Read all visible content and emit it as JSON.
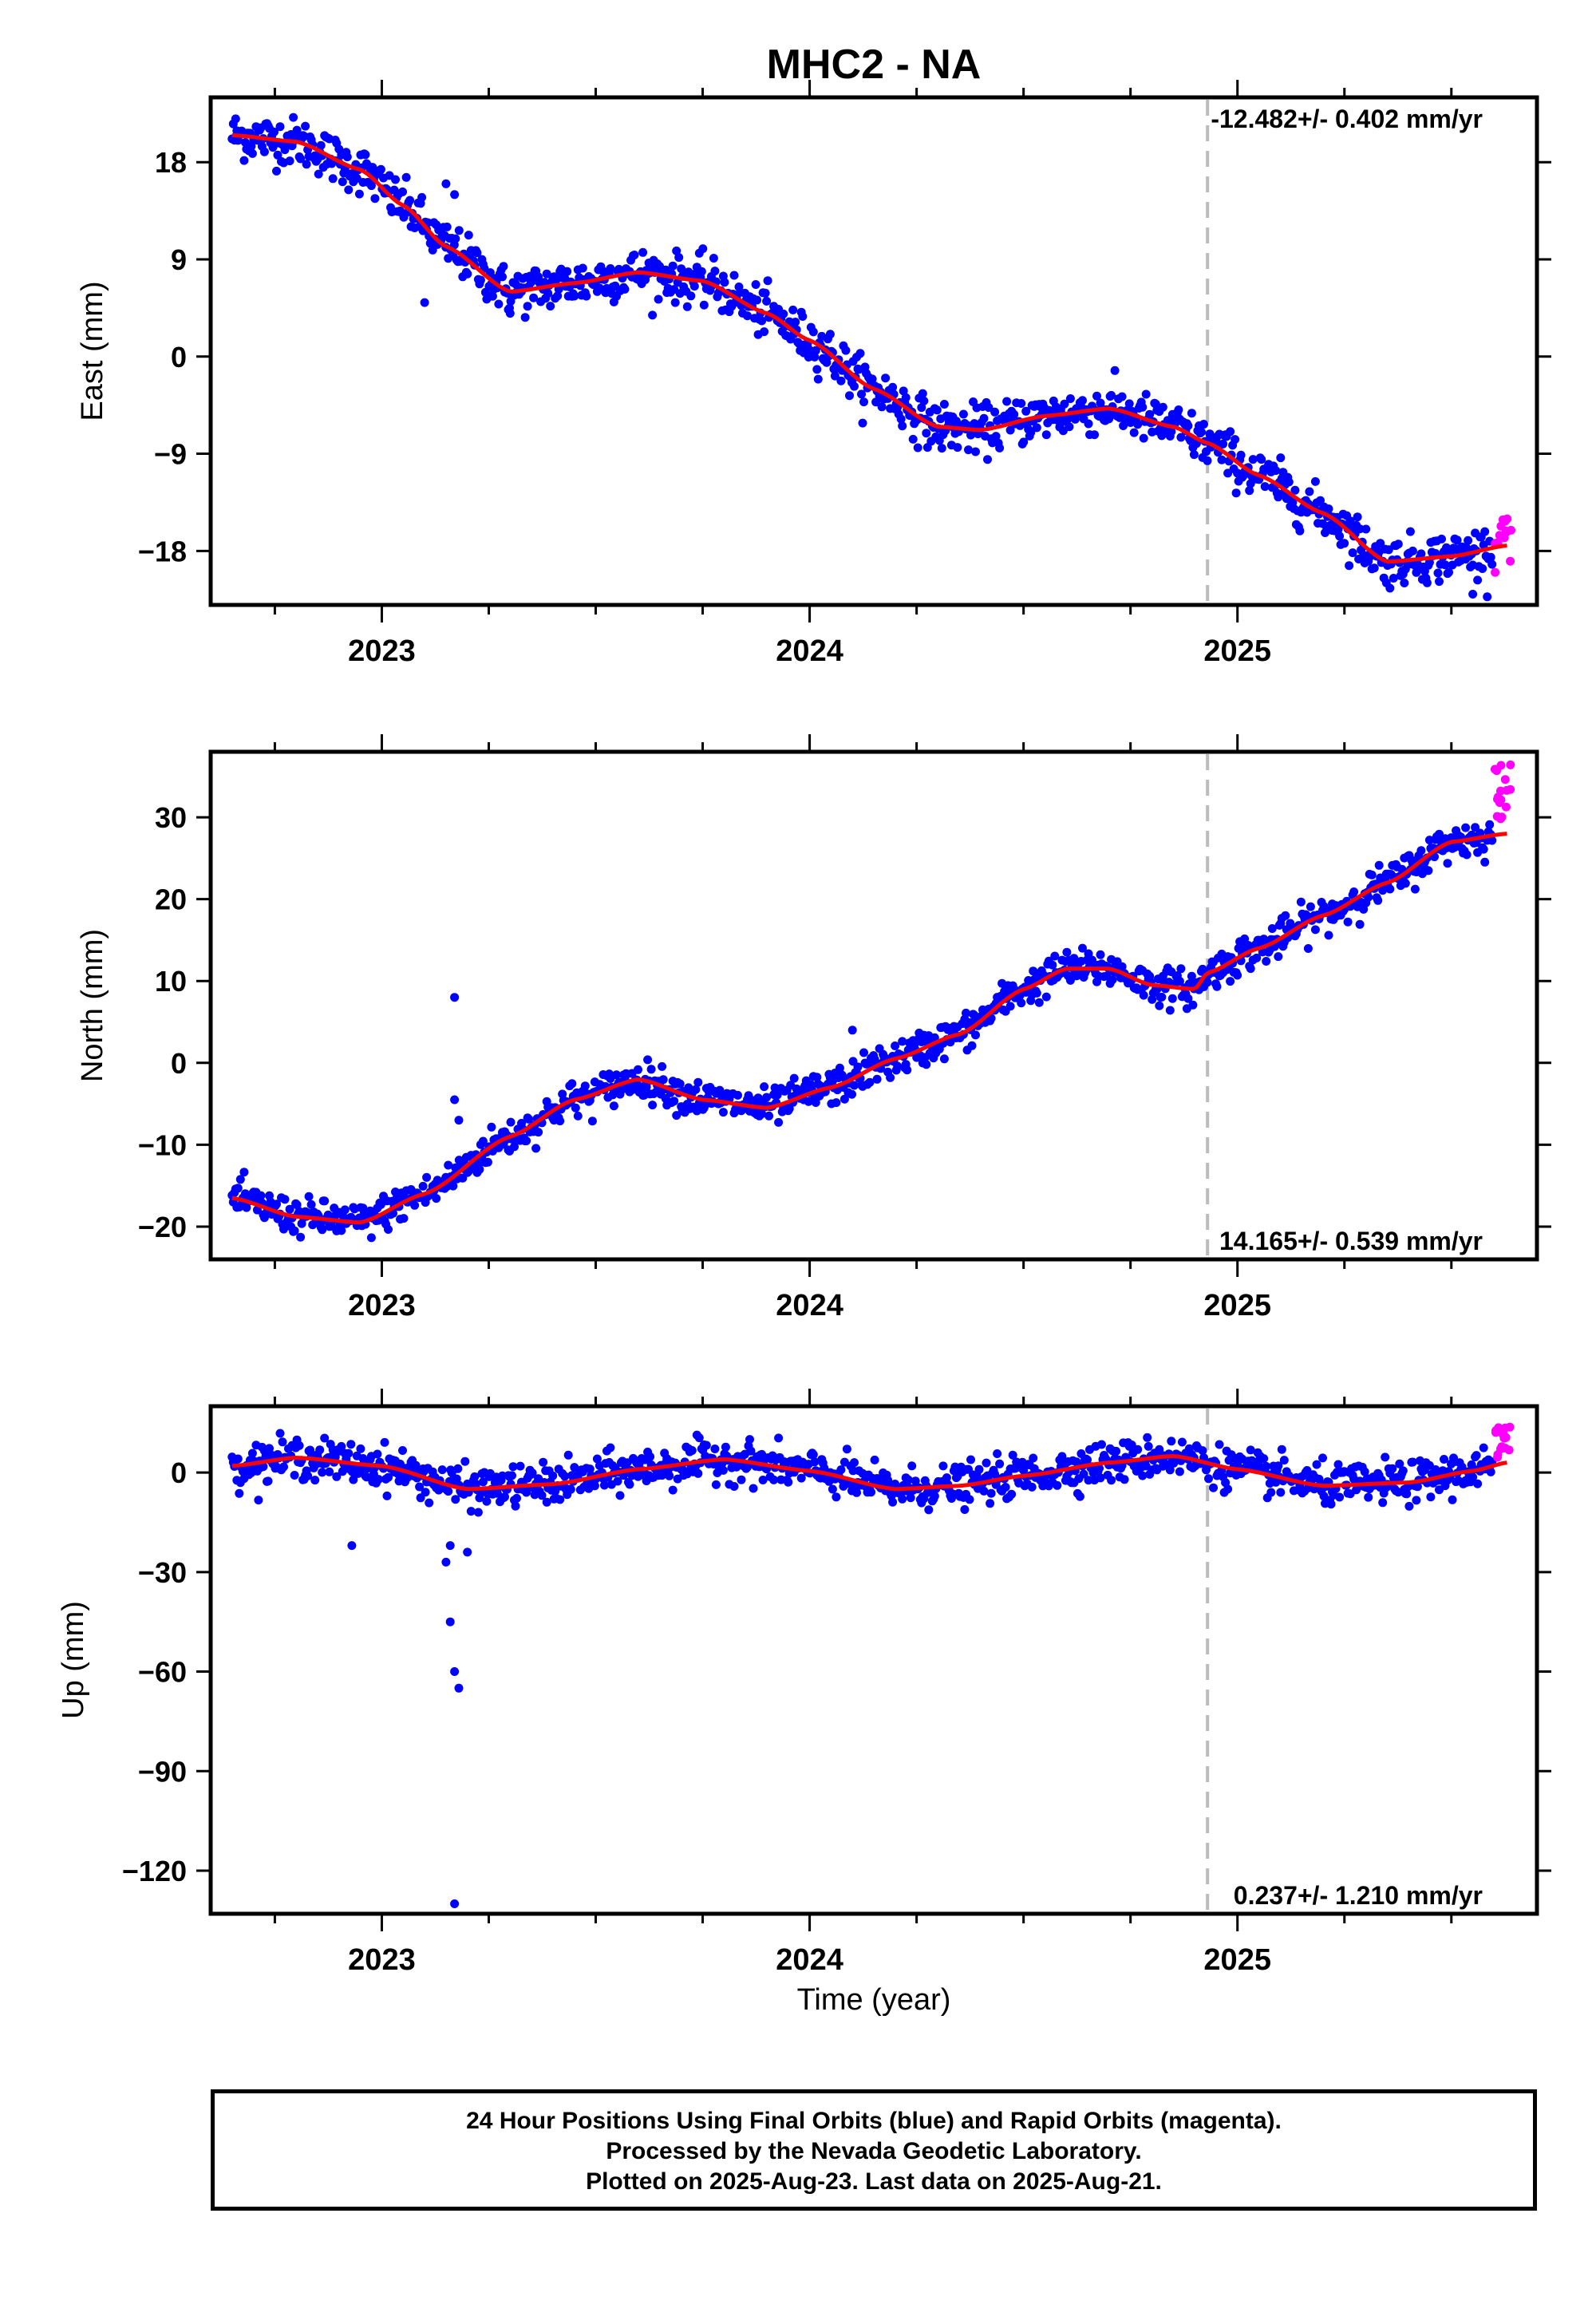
{
  "title": "MHC2 - NA",
  "xlabel": "Time (year)",
  "caption": [
    "24 Hour Positions Using Final Orbits (blue) and Rapid Orbits (magenta).",
    "Processed by the Nevada Geodetic Laboratory.",
    "Plotted on 2025-Aug-23. Last data on 2025-Aug-21."
  ],
  "colors": {
    "final": "#0000ff",
    "rapid": "#ff00ff",
    "model": "#ff0000",
    "marker": "#bbbbbb"
  },
  "chart_data": [
    {
      "type": "scatter",
      "component": "east",
      "ylabel": "East (mm)",
      "xlim": [
        2022.6,
        2025.7
      ],
      "ylim": [
        -23,
        24
      ],
      "yticks": [
        18,
        9,
        0,
        -9,
        -18
      ],
      "xticks": [
        2023,
        2024,
        2025
      ],
      "rate_label": "-12.482+/- 0.402 mm/yr",
      "rate_position": "top-right",
      "marker_line": 2024.93,
      "model": {
        "x": [
          2022.65,
          2022.8,
          2022.95,
          2023.05,
          2023.15,
          2023.3,
          2023.45,
          2023.6,
          2023.75,
          2023.9,
          2024.0,
          2024.15,
          2024.3,
          2024.4,
          2024.55,
          2024.7,
          2024.85,
          2024.93,
          2025.05,
          2025.2,
          2025.35,
          2025.5,
          2025.63
        ],
        "y": [
          20.5,
          19.9,
          17.3,
          14.0,
          10.2,
          6.0,
          6.8,
          7.8,
          7.0,
          4.0,
          1.5,
          -3.0,
          -6.5,
          -6.8,
          -5.5,
          -4.8,
          -6.5,
          -8.0,
          -11.0,
          -14.5,
          -19.0,
          -18.5,
          -17.5
        ]
      },
      "scatter_params": {
        "noise": 1.1,
        "outliers": [
          [
            2023.15,
            16.0
          ],
          [
            2023.17,
            15.0
          ],
          [
            2023.1,
            5.0
          ],
          [
            2023.3,
            4.0
          ],
          [
            2025.55,
            -22.0
          ]
        ]
      },
      "rapid_params": {
        "x_start": 2025.6,
        "x_end": 2025.64,
        "y_center": -17.5,
        "spread": 2.5
      }
    },
    {
      "type": "scatter",
      "component": "north",
      "ylabel": "North (mm)",
      "xlim": [
        2022.6,
        2025.7
      ],
      "ylim": [
        -24,
        38
      ],
      "yticks": [
        30,
        20,
        10,
        0,
        -10,
        -20
      ],
      "xticks": [
        2023,
        2024,
        2025
      ],
      "rate_label": "14.165+/- 0.539 mm/yr",
      "rate_position": "bottom-right",
      "marker_line": 2024.93,
      "model": {
        "x": [
          2022.65,
          2022.8,
          2022.95,
          2023.1,
          2023.3,
          2023.45,
          2023.6,
          2023.75,
          2023.9,
          2024.05,
          2024.2,
          2024.35,
          2024.5,
          2024.6,
          2024.7,
          2024.8,
          2024.9,
          2024.93,
          2025.05,
          2025.2,
          2025.35,
          2025.5,
          2025.63
        ],
        "y": [
          -16.5,
          -18.8,
          -19.5,
          -16.0,
          -9.0,
          -4.5,
          -2.0,
          -4.5,
          -5.5,
          -3.0,
          0.5,
          3.5,
          9.0,
          11.5,
          11.5,
          9.5,
          9.0,
          11.0,
          14.0,
          18.0,
          22.0,
          27.0,
          28.0
        ]
      },
      "scatter_params": {
        "noise": 1.1,
        "outliers": [
          [
            2023.17,
            8.0
          ],
          [
            2023.17,
            -4.5
          ],
          [
            2023.18,
            -7.0
          ],
          [
            2024.1,
            4.0
          ]
        ]
      },
      "rapid_params": {
        "x_start": 2025.6,
        "x_end": 2025.64,
        "y_center": 33.0,
        "spread": 3.5
      }
    },
    {
      "type": "scatter",
      "component": "up",
      "ylabel": "Up (mm)",
      "xlim": [
        2022.6,
        2025.7
      ],
      "ylim": [
        -133,
        20
      ],
      "yticks": [
        0,
        -30,
        -60,
        -90,
        -120
      ],
      "xticks": [
        2023,
        2024,
        2025
      ],
      "rate_label": "0.237+/- 1.210 mm/yr",
      "rate_position": "bottom-right",
      "marker_line": 2024.93,
      "model": {
        "x": [
          2022.65,
          2022.8,
          2023.0,
          2023.2,
          2023.4,
          2023.6,
          2023.8,
          2024.0,
          2024.2,
          2024.35,
          2024.5,
          2024.7,
          2024.85,
          2025.0,
          2025.2,
          2025.4,
          2025.55,
          2025.63
        ],
        "y": [
          2.0,
          4.5,
          2.0,
          -5.0,
          -3.5,
          1.0,
          4.0,
          0.5,
          -5.0,
          -4.0,
          -1.0,
          3.0,
          5.0,
          1.0,
          -4.0,
          -3.0,
          0.5,
          3.0
        ]
      },
      "scatter_params": {
        "noise": 3.0,
        "outliers": [
          [
            2022.93,
            -22.0
          ],
          [
            2023.15,
            -27.0
          ],
          [
            2023.16,
            -45.0
          ],
          [
            2023.17,
            -60.0
          ],
          [
            2023.18,
            -65.0
          ],
          [
            2023.17,
            -130.0
          ],
          [
            2023.16,
            -22.0
          ],
          [
            2023.2,
            -24.0
          ]
        ]
      },
      "rapid_params": {
        "x_start": 2025.6,
        "x_end": 2025.64,
        "y_center": 9.0,
        "spread": 5.0
      }
    }
  ]
}
